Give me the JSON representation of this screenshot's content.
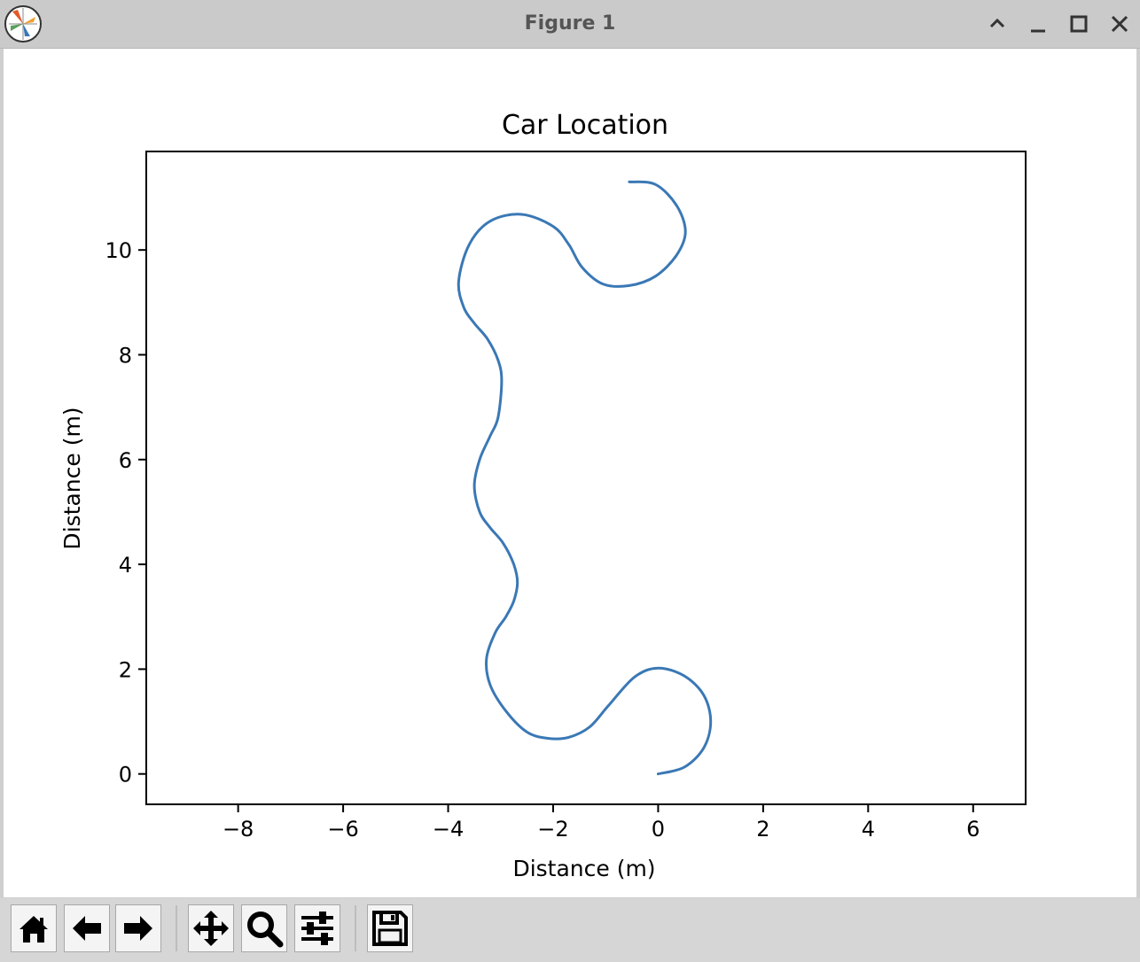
{
  "window": {
    "title": "Figure 1"
  },
  "toolbar": {
    "buttons": [
      {
        "name": "home-button",
        "icon": "home-icon"
      },
      {
        "name": "back-button",
        "icon": "arrow-left-icon"
      },
      {
        "name": "forward-button",
        "icon": "arrow-right-icon"
      },
      {
        "name": "pan-button",
        "icon": "move-icon"
      },
      {
        "name": "zoom-button",
        "icon": "magnifier-icon"
      },
      {
        "name": "configure-subplots-button",
        "icon": "sliders-icon"
      },
      {
        "name": "save-button",
        "icon": "floppy-disk-icon"
      }
    ]
  },
  "chart_data": {
    "type": "line",
    "title": "Car Location",
    "xlabel": "Distance (m)",
    "ylabel": "Distance (m)",
    "xlim": [
      -9.75,
      7.0
    ],
    "ylim": [
      -0.58,
      11.88
    ],
    "xticks": [
      -8,
      -6,
      -4,
      -2,
      0,
      2,
      4,
      6
    ],
    "xtick_labels": [
      "−8",
      "−6",
      "−4",
      "−2",
      "0",
      "2",
      "4",
      "6"
    ],
    "yticks": [
      0,
      2,
      4,
      6,
      8,
      10
    ],
    "ytick_labels": [
      "0",
      "2",
      "4",
      "6",
      "8",
      "10"
    ],
    "grid": false,
    "line_color": "#3a78b5",
    "series": [
      {
        "x": [
          0.0,
          0.5,
          0.87,
          1.0,
          0.87,
          0.5,
          0.0,
          -0.45,
          -0.95,
          -1.3,
          -1.7,
          -2.1,
          -2.5,
          -2.9,
          -3.2,
          -3.27,
          -3.1,
          -2.9,
          -2.75,
          -2.68,
          -2.75,
          -2.95,
          -3.2,
          -3.4,
          -3.5,
          -3.4,
          -3.2,
          -3.05,
          -2.98,
          -3.05,
          -3.25,
          -3.5,
          -3.7,
          -3.8,
          -3.6,
          -3.2,
          -2.6,
          -2.0,
          -1.7,
          -1.45,
          -1.05,
          -0.55,
          -0.05,
          0.35,
          0.52,
          0.35,
          -0.05,
          -0.55
        ],
        "y": [
          0.0,
          0.13,
          0.5,
          1.0,
          1.5,
          1.87,
          2.02,
          1.85,
          1.3,
          0.9,
          0.7,
          0.68,
          0.8,
          1.2,
          1.7,
          2.2,
          2.7,
          3.0,
          3.3,
          3.65,
          4.0,
          4.4,
          4.7,
          5.0,
          5.5,
          6.0,
          6.45,
          6.8,
          7.5,
          7.9,
          8.3,
          8.6,
          8.9,
          9.4,
          10.1,
          10.55,
          10.68,
          10.45,
          10.1,
          9.67,
          9.35,
          9.32,
          9.5,
          9.9,
          10.35,
          10.85,
          11.25,
          11.3
        ]
      }
    ]
  }
}
